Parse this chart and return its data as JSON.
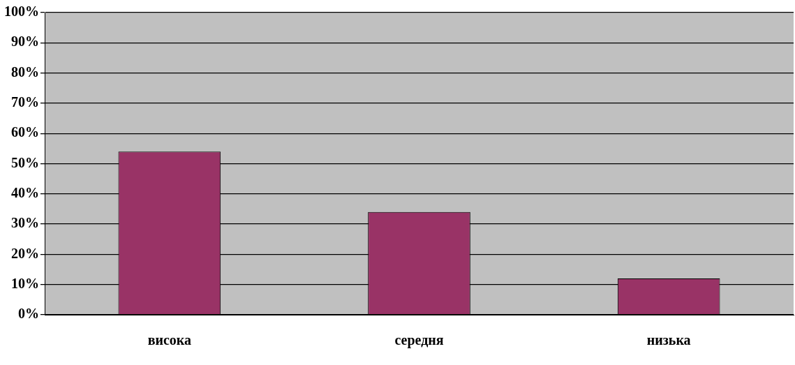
{
  "chart_data": {
    "type": "bar",
    "categories": [
      "висока",
      "середня",
      "низька"
    ],
    "values": [
      54,
      34,
      12
    ],
    "color": "#993366",
    "ylim": [
      0,
      100
    ],
    "yticks": [
      {
        "value": 0,
        "label": "0%"
      },
      {
        "value": 10,
        "label": "10%"
      },
      {
        "value": 20,
        "label": "20%"
      },
      {
        "value": 30,
        "label": "30%"
      },
      {
        "value": 40,
        "label": "40%"
      },
      {
        "value": 50,
        "label": "50%"
      },
      {
        "value": 60,
        "label": "60%"
      },
      {
        "value": 70,
        "label": "70%"
      },
      {
        "value": 80,
        "label": "80%"
      },
      {
        "value": 90,
        "label": "90%"
      },
      {
        "value": 100,
        "label": "100%"
      }
    ],
    "grid": "y",
    "legend": false
  }
}
